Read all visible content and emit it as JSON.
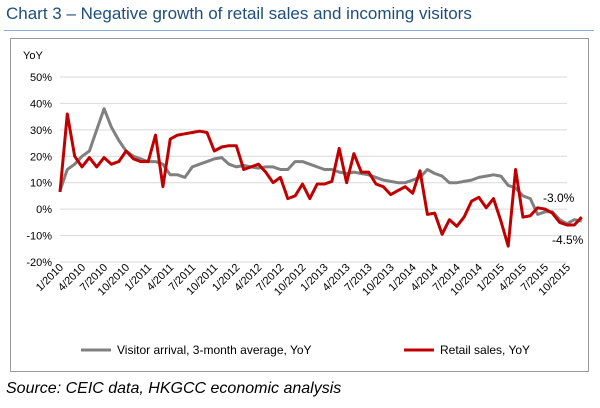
{
  "title": "Chart 3 – Negative growth of retail sales and incoming visitors",
  "source": "Source: CEIC data, HKGCC economic analysis",
  "chart_data": {
    "type": "line",
    "ylabel": "YoY",
    "ylim": [
      -20,
      50
    ],
    "yticks": [
      "-20%",
      "-10%",
      "0%",
      "10%",
      "20%",
      "30%",
      "40%",
      "50%"
    ],
    "ytick_values": [
      -20,
      -10,
      0,
      10,
      20,
      30,
      40,
      50
    ],
    "x_tick_labels": [
      "1/2010",
      "4/2010",
      "7/2010",
      "10/2010",
      "1/2011",
      "4/2011",
      "7/2011",
      "10/2011",
      "1/2012",
      "4/2012",
      "7/2012",
      "10/2012",
      "1/2013",
      "4/2013",
      "7/2013",
      "10/2013",
      "1/2014",
      "4/2014",
      "7/2014",
      "10/2014",
      "1/2015",
      "4/2015",
      "7/2015",
      "10/2015"
    ],
    "x_start": "1/2010",
    "grid": true,
    "legend_position": "bottom",
    "annotations": [
      "-3.0%",
      "-4.5%"
    ],
    "series": [
      {
        "name": "Visitor arrival, 3-month average, YoY",
        "color": "#808080",
        "values": [
          7,
          15,
          17,
          20,
          22,
          30,
          38,
          31,
          26,
          22,
          20,
          19,
          18,
          18,
          17,
          13,
          13,
          12,
          16,
          17,
          18,
          19,
          19.5,
          17,
          16,
          16.5,
          16,
          15.5,
          16,
          16,
          15,
          15,
          18,
          18,
          17,
          16,
          15,
          15,
          14,
          13.5,
          14,
          13.5,
          13,
          12,
          11,
          10.5,
          10,
          10,
          11,
          12,
          15,
          13.5,
          12.5,
          10,
          10,
          10.5,
          11,
          12,
          12.5,
          13,
          12.5,
          9,
          8,
          5,
          4,
          -2,
          -1,
          -1,
          -4,
          -5.5,
          -4,
          -4.5
        ]
      },
      {
        "name": "Retail sales, YoY",
        "color": "#c00000",
        "values": [
          6.5,
          36,
          20,
          16,
          19.5,
          16,
          19.5,
          17,
          18,
          22,
          19,
          18,
          18,
          28,
          8.5,
          26.5,
          28,
          28.5,
          29,
          29.5,
          29,
          22,
          23.5,
          24,
          24,
          15,
          16,
          17,
          14,
          10,
          12,
          4,
          5,
          9.5,
          4,
          9.5,
          9.5,
          10.5,
          23,
          10,
          21,
          14,
          14,
          9.5,
          8.5,
          5.5,
          7,
          8.5,
          6,
          14.5,
          -2,
          -1.5,
          -9.5,
          -4,
          -6.5,
          -3,
          3,
          4.5,
          0.5,
          4,
          -4.5,
          -14,
          15,
          -3,
          -2.5,
          0.5,
          0,
          -1.5,
          -5,
          -6,
          -6,
          -3
        ]
      }
    ]
  }
}
